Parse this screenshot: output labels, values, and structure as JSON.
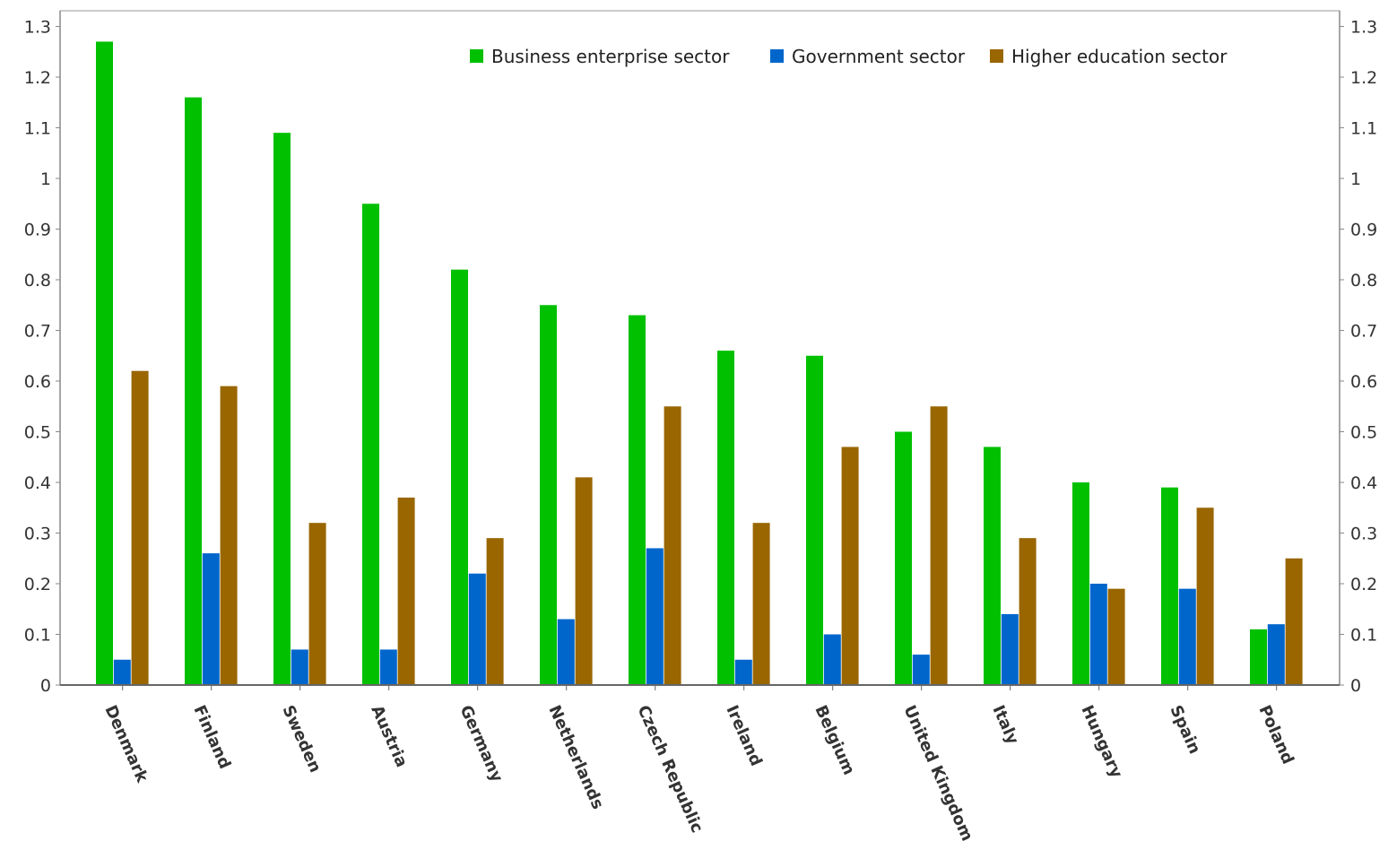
{
  "chart_data": {
    "type": "bar",
    "categories": [
      "Denmark",
      "Finland",
      "Sweden",
      "Austria",
      "Germany",
      "Netherlands",
      "Czech Republic",
      "Ireland",
      "Belgium",
      "United Kingdom",
      "Italy",
      "Hungary",
      "Spain",
      "Poland"
    ],
    "series": [
      {
        "name": "Business enterprise sector",
        "color": "#00c000",
        "values": [
          1.27,
          1.16,
          1.09,
          0.95,
          0.82,
          0.75,
          0.73,
          0.66,
          0.65,
          0.5,
          0.47,
          0.4,
          0.39,
          0.11
        ]
      },
      {
        "name": "Government sector",
        "color": "#0066cc",
        "values": [
          0.05,
          0.26,
          0.07,
          0.07,
          0.22,
          0.13,
          0.27,
          0.05,
          0.1,
          0.06,
          0.14,
          0.2,
          0.19,
          0.12
        ]
      },
      {
        "name": "Higher education sector",
        "color": "#996600",
        "values": [
          0.62,
          0.59,
          0.32,
          0.37,
          0.29,
          0.41,
          0.55,
          0.32,
          0.47,
          0.55,
          0.29,
          0.19,
          0.35,
          0.25
        ]
      }
    ],
    "yticks": [
      "0",
      "0.1",
      "0.2",
      "0.3",
      "0.4",
      "0.5",
      "0.6",
      "0.7",
      "0.8",
      "0.9",
      "1",
      "1.1",
      "1.2",
      "1.3"
    ],
    "ylim": [
      0,
      1.3
    ],
    "title": "",
    "xlabel": "",
    "ylabel": "",
    "grid": true,
    "legend_position": "top-right",
    "axes_right_duplicate": true
  }
}
